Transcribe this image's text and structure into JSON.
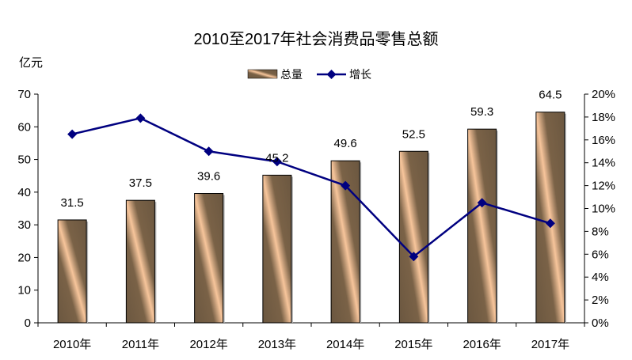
{
  "chart_data": {
    "type": "bar",
    "title": "2010至2017年社会消费品零售总额",
    "ylabel": "亿元",
    "categories": [
      "2010年",
      "2011年",
      "2012年",
      "2013年",
      "2014年",
      "2015年",
      "2016年",
      "2017年"
    ],
    "series": [
      {
        "name": "总量",
        "type": "bar",
        "axis": "left",
        "values": [
          31.5,
          37.5,
          39.6,
          45.2,
          49.6,
          52.5,
          59.3,
          64.5
        ]
      },
      {
        "name": "增长",
        "type": "line",
        "axis": "right",
        "values": [
          16.5,
          17.9,
          15.0,
          14.1,
          12.0,
          5.8,
          10.5,
          8.7
        ]
      }
    ],
    "y_left": {
      "ylim": [
        0,
        70
      ],
      "ticks": [
        "0",
        "10",
        "20",
        "30",
        "40",
        "50",
        "60",
        "70"
      ]
    },
    "y_right": {
      "ylim": [
        0,
        20
      ],
      "ticks": [
        "0%",
        "2%",
        "4%",
        "6%",
        "8%",
        "10%",
        "12%",
        "14%",
        "16%",
        "18%",
        "20%"
      ]
    },
    "data_labels": [
      "31.5",
      "37.5",
      "39.6",
      "45.2",
      "49.6",
      "52.5",
      "59.3",
      "64.5"
    ],
    "grid": false,
    "legend_position": "top-center",
    "colors": {
      "bar_dark": "#6b5740",
      "bar_light": "#f7c59b",
      "line": "#000080",
      "axis": "#000000"
    }
  }
}
